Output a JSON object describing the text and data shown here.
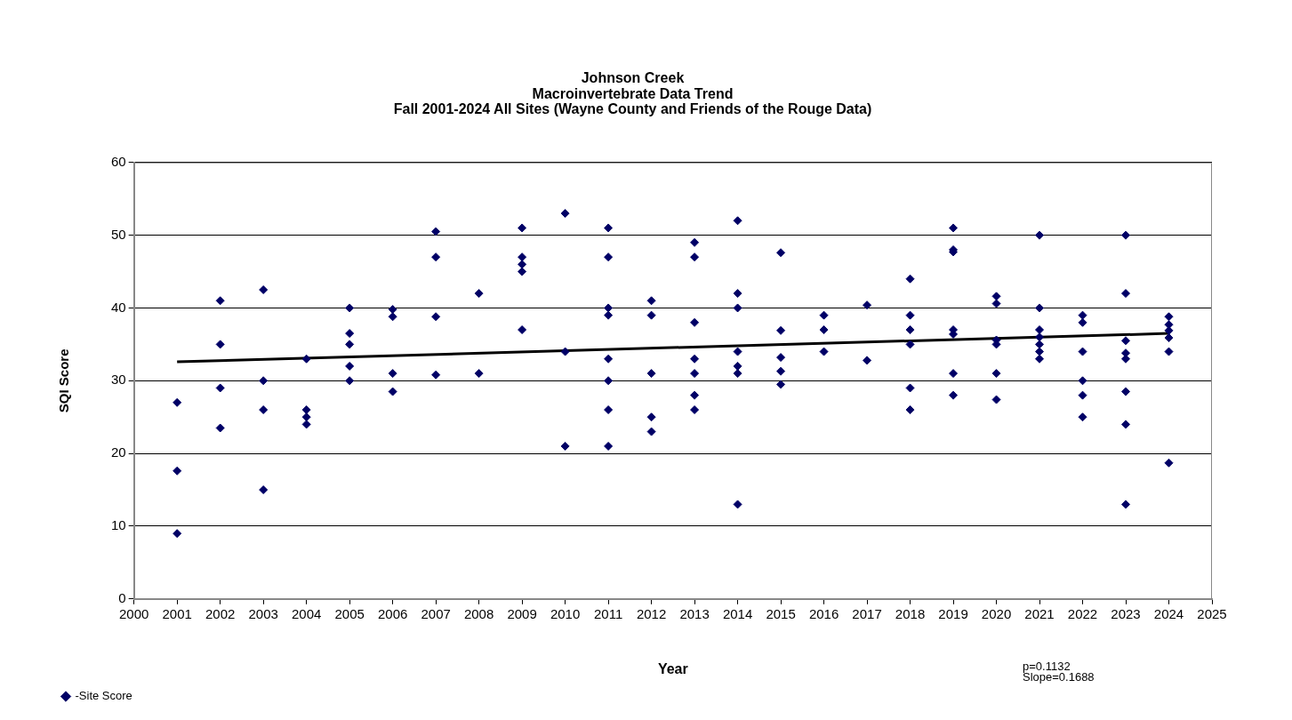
{
  "chart_data": {
    "type": "scatter",
    "title": "Johnson Creek\nMacroinvertebrate Data Trend\nFall 2001-2024 All Sites (Wayne County and Friends of the Rouge Data)",
    "xlabel": "Year",
    "ylabel": "SQI Score",
    "xlim": [
      2000,
      2025
    ],
    "xticks": [
      2000,
      2001,
      2002,
      2003,
      2004,
      2005,
      2006,
      2007,
      2008,
      2009,
      2010,
      2011,
      2012,
      2013,
      2014,
      2015,
      2016,
      2017,
      2018,
      2019,
      2020,
      2021,
      2022,
      2023,
      2024,
      2025
    ],
    "ylim": [
      0,
      60
    ],
    "yticks": [
      0,
      10,
      20,
      30,
      40,
      50,
      60
    ],
    "grid": "y",
    "legend": "bottom left",
    "marker": "diamond",
    "series": [
      {
        "name": "-Site Score",
        "color": "#000066",
        "type": "scatter",
        "x": [
          2001,
          2001,
          2001,
          2002,
          2002,
          2002,
          2002,
          2003,
          2003,
          2003,
          2003,
          2004,
          2004,
          2004,
          2004,
          2005,
          2005,
          2005,
          2005,
          2005,
          2006,
          2006,
          2006,
          2006,
          2007,
          2007,
          2007,
          2007,
          2008,
          2008,
          2009,
          2009,
          2009,
          2009,
          2009,
          2010,
          2010,
          2010,
          2011,
          2011,
          2011,
          2011,
          2011,
          2011,
          2011,
          2011,
          2012,
          2012,
          2012,
          2012,
          2012,
          2013,
          2013,
          2013,
          2013,
          2013,
          2013,
          2013,
          2014,
          2014,
          2014,
          2014,
          2014,
          2014,
          2014,
          2015,
          2015,
          2015,
          2015,
          2015,
          2016,
          2016,
          2016,
          2017,
          2017,
          2018,
          2018,
          2018,
          2018,
          2018,
          2018,
          2019,
          2019,
          2019,
          2019,
          2019,
          2019,
          2019,
          2020,
          2020,
          2020,
          2020,
          2020,
          2020,
          2021,
          2021,
          2021,
          2021,
          2021,
          2021,
          2021,
          2022,
          2022,
          2022,
          2022,
          2022,
          2022,
          2023,
          2023,
          2023,
          2023,
          2023,
          2023,
          2023,
          2023,
          2024,
          2024,
          2024,
          2024,
          2024,
          2024
        ],
        "values": [
          27,
          17.6,
          9,
          41,
          35,
          29,
          23.5,
          42.5,
          30,
          26,
          15,
          33,
          26,
          25,
          24,
          40,
          36.5,
          35,
          32,
          30,
          39.8,
          38.8,
          31,
          28.5,
          50.5,
          47,
          38.8,
          30.8,
          42,
          31,
          51,
          47,
          46,
          45,
          37,
          53,
          34,
          21,
          51,
          47,
          40,
          39,
          33,
          30,
          26,
          21,
          41,
          39,
          31,
          25,
          23,
          49,
          47,
          38,
          33,
          31,
          28,
          26,
          52,
          42,
          40,
          34,
          32,
          31,
          13,
          47.6,
          36.9,
          33.2,
          31.3,
          29.5,
          39,
          37,
          34,
          40.4,
          32.8,
          44,
          39,
          37,
          35,
          29,
          26,
          51,
          48,
          47.7,
          37,
          36.4,
          31,
          28,
          41.6,
          40.6,
          35.6,
          35,
          31,
          27.4,
          50,
          40,
          37,
          36,
          35,
          34,
          33,
          39,
          38,
          34,
          30,
          28,
          25,
          50,
          42,
          35.5,
          33.8,
          33,
          28.5,
          24,
          13,
          38.8,
          37.7,
          36.9,
          35.9,
          34,
          18.7
        ]
      },
      {
        "color": "#000000",
        "type": "line",
        "marker": "none",
        "x": [
          2001,
          2024
        ],
        "values": [
          32.6,
          36.5
        ]
      }
    ],
    "annotations": [
      "p=0.1132",
      "Slope=0.1688"
    ]
  }
}
